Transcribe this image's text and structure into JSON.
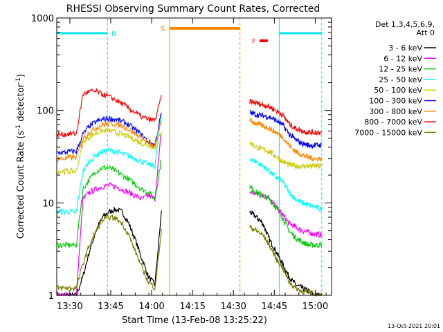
{
  "chart_data": {
    "type": "line",
    "title": "RHESSI Observing Summary Count Rates, Corrected",
    "xlabel": "Start Time (13-Feb-08 13:25:22)",
    "ylabel_main": "Corrected Count Rate (s",
    "ylabel_sup1": "-1",
    "ylabel_mid": " detector",
    "ylabel_sup2": "-1",
    "ylabel_end": ")",
    "yscale": "log",
    "ylim": [
      1,
      1000
    ],
    "xlim_minutes": [
      13.42,
      15.1
    ],
    "xticks": [
      {
        "m": 13.5,
        "label": "13:30"
      },
      {
        "m": 13.75,
        "label": "13:45"
      },
      {
        "m": 14.0,
        "label": "14:00"
      },
      {
        "m": 14.25,
        "label": "14:15"
      },
      {
        "m": 14.5,
        "label": "14:30"
      },
      {
        "m": 14.75,
        "label": "14:45"
      },
      {
        "m": 15.0,
        "label": "15:00"
      }
    ],
    "yticks": [
      {
        "v": 1,
        "label": "1"
      },
      {
        "v": 10,
        "label": "10"
      },
      {
        "v": 100,
        "label": "100"
      },
      {
        "v": 1000,
        "label": "1000"
      }
    ],
    "legend_header": [
      "Det 1,3,4,5,6,9,",
      "Att 0"
    ],
    "series": [
      {
        "name": "3 - 6 keV",
        "color": "#000000",
        "pre": [
          1,
          1,
          1,
          1,
          1.6,
          3,
          5,
          7,
          8,
          8.5,
          8,
          6,
          4,
          2.5,
          1.6,
          1.3,
          8
        ],
        "post": [
          8,
          7,
          6,
          4,
          3,
          2.2,
          1.6,
          1.3,
          1.2,
          1.1,
          1,
          1
        ]
      },
      {
        "name": "6 - 12 keV",
        "color": "#ff00ff",
        "pre": [
          1,
          1,
          1,
          1,
          11,
          13,
          14,
          15,
          15.5,
          15,
          14,
          13,
          12,
          11,
          12,
          11,
          60
        ],
        "post": [
          13,
          12.5,
          12,
          11.5,
          9,
          7.5,
          6,
          5.5,
          5,
          4.8,
          4.6,
          4.5
        ]
      },
      {
        "name": "12 - 25 keV",
        "color": "#00cc00",
        "pre": [
          3.5,
          3.5,
          3.5,
          3.5,
          14,
          18,
          22,
          24,
          24,
          22,
          20,
          18,
          16,
          14,
          13,
          11,
          30
        ],
        "post": [
          15,
          13,
          12,
          11,
          9,
          7,
          5,
          4.2,
          3.8,
          3.5,
          3.5,
          3.5
        ]
      },
      {
        "name": "25 - 50 keV",
        "color": "#00ffff",
        "pre": [
          8,
          8,
          8,
          8,
          22,
          28,
          33,
          36,
          37,
          36,
          34,
          32,
          30,
          28,
          26,
          25,
          95
        ],
        "post": [
          30,
          28,
          25,
          22,
          19,
          17,
          13,
          11,
          10,
          9.5,
          9,
          8.5
        ]
      },
      {
        "name": "50 - 100 keV",
        "color": "#cccc00",
        "pre": [
          22,
          22,
          22,
          22,
          45,
          52,
          57,
          60,
          60,
          58,
          55,
          52,
          48,
          44,
          42,
          40,
          60
        ],
        "post": [
          45,
          40,
          38,
          36,
          32,
          28,
          26,
          25,
          25,
          25,
          25,
          25
        ]
      },
      {
        "name": "100 - 300 keV",
        "color": "#0000ff",
        "pre": [
          35,
          35,
          36,
          36,
          55,
          68,
          75,
          80,
          82,
          80,
          76,
          70,
          62,
          54,
          46,
          42,
          95
        ],
        "post": [
          95,
          90,
          88,
          85,
          78,
          70,
          56,
          48,
          44,
          42,
          42,
          42
        ]
      },
      {
        "name": "300 - 800 keV",
        "color": "#ff8800",
        "pre": [
          30,
          30,
          31,
          31,
          50,
          58,
          65,
          70,
          72,
          71,
          68,
          62,
          56,
          50,
          44,
          40,
          80
        ],
        "post": [
          78,
          72,
          68,
          64,
          58,
          52,
          42,
          36,
          33,
          31,
          30,
          30
        ]
      },
      {
        "name": "800 - 7000 keV",
        "color": "#ff0000",
        "pre": [
          55,
          55,
          56,
          56,
          150,
          160,
          160,
          150,
          140,
          130,
          118,
          105,
          95,
          85,
          80,
          78,
          140
        ],
        "post": [
          125,
          120,
          115,
          110,
          100,
          90,
          72,
          64,
          60,
          58,
          58,
          58
        ]
      },
      {
        "name": "7000 - 15000 keV",
        "color": "#808000",
        "pre": [
          1.2,
          1.2,
          1.2,
          1.2,
          2.2,
          3.5,
          5,
          6.5,
          7,
          6.8,
          6,
          4.5,
          3,
          2,
          1.4,
          1.2,
          5
        ],
        "post": [
          5.5,
          5,
          4.5,
          3.5,
          2.5,
          2,
          1.4,
          1.2,
          1.1,
          1.1,
          1,
          1
        ]
      }
    ],
    "pre_range_minutes": [
      13.42,
      14.06
    ],
    "post_range_minutes": [
      14.6,
      15.04
    ],
    "annotations": [
      {
        "label": "N",
        "type": "night",
        "color": "#00e5e5",
        "bands": [
          [
            13.42,
            13.73
          ],
          [
            14.78,
            15.04
          ]
        ]
      },
      {
        "label": "S",
        "type": "saa",
        "color": "#ff8800",
        "bands": [
          [
            14.11,
            14.54
          ]
        ]
      },
      {
        "label": "F",
        "type": "flare",
        "color": "#ff0000",
        "bands": [
          [
            14.66,
            14.71
          ]
        ]
      }
    ],
    "date_stamp": "13-Oct-2021 20:01"
  }
}
